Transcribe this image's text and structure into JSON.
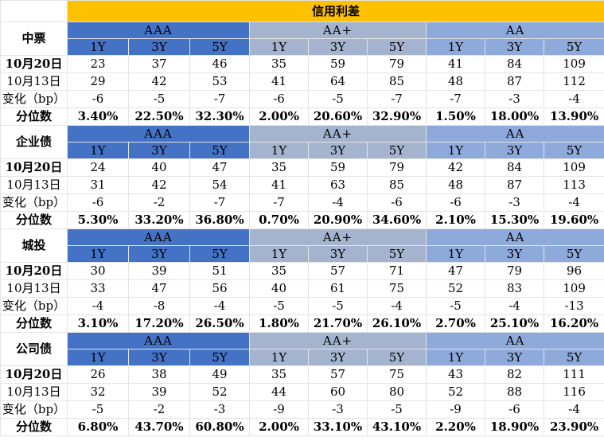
{
  "title": "信用利差",
  "row_labels": {
    "current": "10月20日",
    "previous": "10月13日",
    "change": "变化（bp）",
    "percentile": "分位数"
  },
  "rating_groups": [
    "AAA",
    "AA+",
    "AA"
  ],
  "tenors": [
    "1Y",
    "3Y",
    "5Y"
  ],
  "sections": [
    {
      "name": "中票",
      "current": [
        "23",
        "37",
        "46",
        "35",
        "59",
        "79",
        "41",
        "84",
        "109"
      ],
      "previous": [
        "29",
        "42",
        "53",
        "41",
        "64",
        "85",
        "48",
        "87",
        "112"
      ],
      "change": [
        "-6",
        "-5",
        "-7",
        "-6",
        "-5",
        "-7",
        "-7",
        "-3",
        "-4"
      ],
      "percentile": [
        "3.40%",
        "22.50%",
        "32.30%",
        "2.00%",
        "20.60%",
        "32.90%",
        "1.50%",
        "18.00%",
        "13.90%"
      ]
    },
    {
      "name": "企业债",
      "current": [
        "24",
        "40",
        "47",
        "35",
        "59",
        "79",
        "42",
        "84",
        "109"
      ],
      "previous": [
        "31",
        "42",
        "54",
        "41",
        "63",
        "85",
        "48",
        "87",
        "113"
      ],
      "change": [
        "-6",
        "-2",
        "-7",
        "-7",
        "-4",
        "-6",
        "-6",
        "-3",
        "-4"
      ],
      "percentile": [
        "5.30%",
        "33.20%",
        "36.80%",
        "0.70%",
        "20.90%",
        "34.60%",
        "2.10%",
        "15.30%",
        "19.60%"
      ]
    },
    {
      "name": "城投",
      "current": [
        "30",
        "39",
        "51",
        "35",
        "57",
        "71",
        "47",
        "79",
        "96"
      ],
      "previous": [
        "33",
        "47",
        "56",
        "40",
        "61",
        "75",
        "52",
        "83",
        "109"
      ],
      "change": [
        "-4",
        "-8",
        "-4",
        "-5",
        "-5",
        "-4",
        "-5",
        "-4",
        "-13"
      ],
      "percentile": [
        "3.10%",
        "17.20%",
        "26.50%",
        "1.80%",
        "21.70%",
        "26.10%",
        "2.70%",
        "25.10%",
        "16.20%"
      ]
    },
    {
      "name": "公司债",
      "current": [
        "26",
        "38",
        "49",
        "35",
        "57",
        "75",
        "43",
        "82",
        "111"
      ],
      "previous": [
        "32",
        "39",
        "52",
        "44",
        "60",
        "80",
        "52",
        "88",
        "116"
      ],
      "change": [
        "-5",
        "-2",
        "-3",
        "-9",
        "-3",
        "-5",
        "-9",
        "-6",
        "-4"
      ],
      "percentile": [
        "6.80%",
        "43.70%",
        "60.80%",
        "2.00%",
        "33.10%",
        "43.10%",
        "2.20%",
        "18.90%",
        "23.90%"
      ]
    }
  ]
}
